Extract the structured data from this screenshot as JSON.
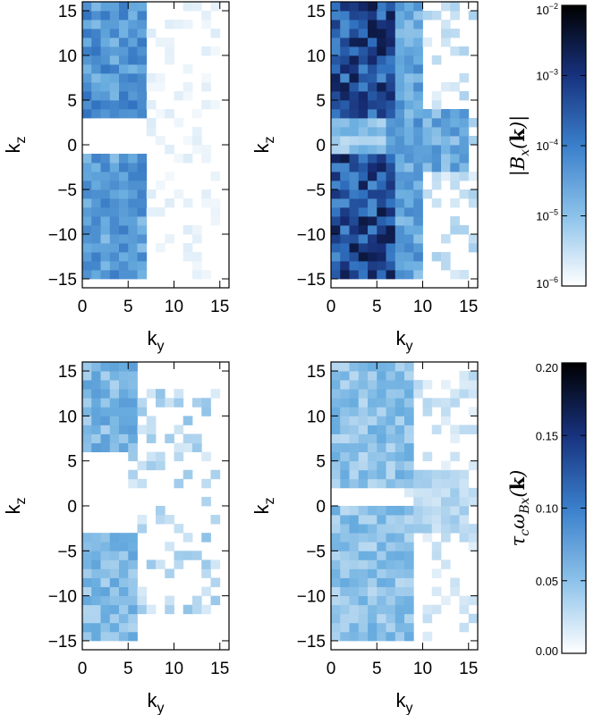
{
  "chart_data": {
    "type": "heatmap",
    "grid": {
      "ky_min": 0,
      "ky_max": 16,
      "kz_min": -16,
      "kz_max": 16
    },
    "panels": [
      {
        "id": "top-left",
        "xlabel": "k_y",
        "ylabel": "k_z",
        "xticks": [
          "0",
          "5",
          "10",
          "15"
        ],
        "yticks": [
          "-15",
          "-10",
          "-5",
          "0",
          "5",
          "10",
          "15"
        ],
        "quantity": "|B_x(k)|",
        "scale": "log",
        "range": [
          1e-06,
          0.01
        ],
        "regions": [
          {
            "ky": [
              0,
              6
            ],
            "kz": [
              3,
              15
            ],
            "level": 0.35
          },
          {
            "ky": [
              0,
              6
            ],
            "kz": [
              -15,
              -2
            ],
            "level": 0.32
          },
          {
            "ky": [
              6,
              14
            ],
            "kz": [
              -15,
              15
            ],
            "level": 0.04,
            "sparse": true
          }
        ]
      },
      {
        "id": "top-right",
        "xlabel": "k_y",
        "ylabel": "k_z",
        "xticks": [
          "0",
          "5",
          "10",
          "15"
        ],
        "yticks": [
          "-15",
          "-10",
          "-5",
          "0",
          "5",
          "10",
          "15"
        ],
        "quantity": "|B_x(k)|",
        "scale": "log",
        "range": [
          1e-06,
          0.01
        ],
        "regions": [
          {
            "ky": [
              0,
              6
            ],
            "kz": [
              3,
              15
            ],
            "level": 0.62
          },
          {
            "ky": [
              0,
              6
            ],
            "kz": [
              -15,
              -2
            ],
            "level": 0.62
          },
          {
            "ky": [
              0,
              7
            ],
            "kz": [
              -2,
              3
            ],
            "level": 0.18
          },
          {
            "ky": [
              6,
              9
            ],
            "kz": [
              -15,
              15
            ],
            "level": 0.3
          },
          {
            "ky": [
              9,
              14
            ],
            "kz": [
              -3,
              3
            ],
            "level": 0.28
          },
          {
            "ky": [
              9,
              15
            ],
            "kz": [
              -15,
              15
            ],
            "level": 0.1,
            "sparse": true
          }
        ]
      },
      {
        "id": "bottom-left",
        "xlabel": "k_y",
        "ylabel": "k_z",
        "xticks": [
          "0",
          "5",
          "10",
          "15"
        ],
        "yticks": [
          "-15",
          "-10",
          "-5",
          "0",
          "5",
          "10",
          "15"
        ],
        "quantity": "tau_c omega_Bx(k)",
        "scale": "linear",
        "range": [
          0.0,
          0.2
        ],
        "regions": [
          {
            "ky": [
              0,
              5
            ],
            "kz": [
              6,
              15
            ],
            "level": 0.055
          },
          {
            "ky": [
              0,
              5
            ],
            "kz": [
              -15,
              -4
            ],
            "level": 0.05
          },
          {
            "ky": [
              5,
              14
            ],
            "kz": [
              -12,
              12
            ],
            "level": 0.03,
            "sparse": true
          }
        ]
      },
      {
        "id": "bottom-right",
        "xlabel": "k_y",
        "ylabel": "k_z",
        "xticks": [
          "0",
          "5",
          "10",
          "15"
        ],
        "yticks": [
          "-15",
          "-10",
          "-5",
          "0",
          "5",
          "10",
          "15"
        ],
        "quantity": "tau_c omega_Bx(k)",
        "scale": "linear",
        "range": [
          0.0,
          0.2
        ],
        "regions": [
          {
            "ky": [
              0,
              8
            ],
            "kz": [
              2,
              15
            ],
            "level": 0.045
          },
          {
            "ky": [
              0,
              8
            ],
            "kz": [
              -15,
              -1
            ],
            "level": 0.045
          },
          {
            "ky": [
              9,
              14
            ],
            "kz": [
              -3,
              3
            ],
            "level": 0.03
          },
          {
            "ky": [
              8,
              15
            ],
            "kz": [
              -15,
              15
            ],
            "level": 0.02,
            "sparse": true
          }
        ]
      }
    ],
    "colorbars": [
      {
        "id": "top",
        "label": "|B_x(k)|",
        "scale": "log",
        "ticks": [
          {
            "base": "10",
            "exp": "-2",
            "value": 0.01
          },
          {
            "base": "10",
            "exp": "-3",
            "value": 0.001
          },
          {
            "base": "10",
            "exp": "-4",
            "value": 0.0001
          },
          {
            "base": "10",
            "exp": "-5",
            "value": 1e-05
          },
          {
            "base": "10",
            "exp": "-6",
            "value": 1e-06
          }
        ]
      },
      {
        "id": "bottom",
        "label": "τ_c ω_Bx(k)",
        "scale": "linear",
        "ticks": [
          "0.20",
          "0.15",
          "0.10",
          "0.05",
          "0.00"
        ]
      }
    ],
    "colormap": [
      "#ffffff",
      "#6aaee0",
      "#2f70bf",
      "#162b72",
      "#000000"
    ]
  }
}
